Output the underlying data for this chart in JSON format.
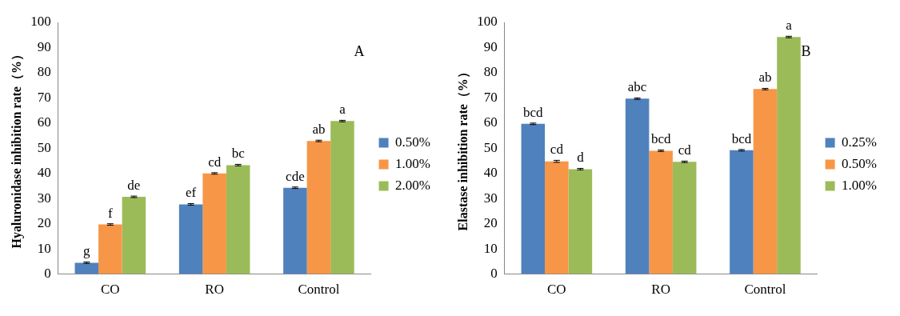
{
  "chart_data": [
    {
      "type": "bar",
      "title": "A",
      "ylabel": "Hyaluronidase inhibition rate（%）",
      "categories": [
        "CO",
        "RO",
        "Control"
      ],
      "ylim": [
        0,
        100
      ],
      "yticks": [
        0,
        10,
        20,
        30,
        40,
        50,
        60,
        70,
        80,
        90,
        100
      ],
      "grid": false,
      "legend": "right",
      "series": [
        {
          "name": "0.50%",
          "color": "#4f81bd",
          "values": [
            4.5,
            27.7,
            34.3
          ],
          "errors": [
            0.3,
            0.3,
            0.3
          ],
          "value_labels": [
            "g",
            "ef",
            "cde"
          ]
        },
        {
          "name": "1.00%",
          "color": "#f79646",
          "values": [
            19.7,
            40.0,
            52.9
          ],
          "errors": [
            0.3,
            0.3,
            0.3
          ],
          "value_labels": [
            "f",
            "cd",
            "ab"
          ]
        },
        {
          "name": "2.00%",
          "color": "#9bbb59",
          "values": [
            30.7,
            43.3,
            60.8
          ],
          "errors": [
            0.3,
            0.3,
            0.3
          ],
          "value_labels": [
            "de",
            "bc",
            "a"
          ]
        }
      ]
    },
    {
      "type": "bar",
      "title": "B",
      "ylabel": "Elastase inhibition rate（%）",
      "categories": [
        "CO",
        "RO",
        "Control"
      ],
      "ylim": [
        0,
        100
      ],
      "yticks": [
        0,
        10,
        20,
        30,
        40,
        50,
        60,
        70,
        80,
        90,
        100
      ],
      "grid": false,
      "legend": "right",
      "series": [
        {
          "name": "0.25%",
          "color": "#4f81bd",
          "values": [
            59.7,
            69.7,
            49.2
          ],
          "errors": [
            0.3,
            0.3,
            0.3
          ],
          "value_labels": [
            "bcd",
            "abc",
            "bcd"
          ]
        },
        {
          "name": "0.50%",
          "color": "#f79646",
          "values": [
            44.8,
            49.0,
            73.5
          ],
          "errors": [
            0.4,
            0.3,
            0.3
          ],
          "value_labels": [
            "cd",
            "bcd",
            "ab"
          ]
        },
        {
          "name": "1.00%",
          "color": "#9bbb59",
          "values": [
            41.7,
            44.6,
            94.2
          ],
          "errors": [
            0.3,
            0.3,
            0.3
          ],
          "value_labels": [
            "d",
            "cd",
            "a"
          ]
        }
      ]
    }
  ]
}
